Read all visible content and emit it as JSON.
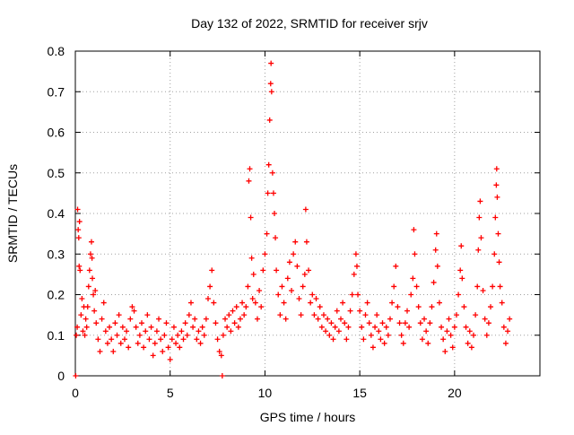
{
  "chart_data": {
    "type": "scatter",
    "title": "Day 132 of 2022, SRMTID for receiver srjv",
    "xlabel": "GPS time / hours",
    "ylabel": "SRMTID / TECUs",
    "xlim": [
      0,
      24.5
    ],
    "ylim": [
      0,
      0.8
    ],
    "xticks": [
      0,
      5,
      10,
      15,
      20
    ],
    "yticks": [
      0,
      0.1,
      0.2,
      0.3,
      0.4,
      0.5,
      0.6,
      0.7,
      0.8
    ],
    "grid": true,
    "marker": "+",
    "color": "#ff0000",
    "series": [
      {
        "name": "SRMTID",
        "points": [
          [
            0.02,
            0.0
          ],
          [
            0.05,
            0.1
          ],
          [
            0.1,
            0.12
          ],
          [
            0.12,
            0.41
          ],
          [
            0.15,
            0.36
          ],
          [
            0.18,
            0.34
          ],
          [
            0.2,
            0.27
          ],
          [
            0.22,
            0.38
          ],
          [
            0.25,
            0.26
          ],
          [
            0.3,
            0.15
          ],
          [
            0.35,
            0.19
          ],
          [
            0.4,
            0.11
          ],
          [
            0.45,
            0.17
          ],
          [
            0.5,
            0.1
          ],
          [
            0.55,
            0.14
          ],
          [
            0.6,
            0.12
          ],
          [
            0.65,
            0.17
          ],
          [
            0.7,
            0.22
          ],
          [
            0.75,
            0.26
          ],
          [
            0.8,
            0.3
          ],
          [
            0.85,
            0.33
          ],
          [
            0.88,
            0.29
          ],
          [
            0.9,
            0.24
          ],
          [
            0.95,
            0.2
          ],
          [
            1.0,
            0.16
          ],
          [
            1.05,
            0.21
          ],
          [
            1.1,
            0.13
          ],
          [
            1.2,
            0.09
          ],
          [
            1.3,
            0.06
          ],
          [
            1.4,
            0.14
          ],
          [
            1.5,
            0.18
          ],
          [
            1.6,
            0.11
          ],
          [
            1.7,
            0.08
          ],
          [
            1.8,
            0.12
          ],
          [
            1.9,
            0.09
          ],
          [
            2.0,
            0.06
          ],
          [
            2.1,
            0.13
          ],
          [
            2.2,
            0.1
          ],
          [
            2.3,
            0.15
          ],
          [
            2.4,
            0.08
          ],
          [
            2.5,
            0.12
          ],
          [
            2.6,
            0.09
          ],
          [
            2.7,
            0.11
          ],
          [
            2.8,
            0.07
          ],
          [
            2.9,
            0.14
          ],
          [
            3.0,
            0.17
          ],
          [
            3.1,
            0.16
          ],
          [
            3.2,
            0.12
          ],
          [
            3.3,
            0.08
          ],
          [
            3.4,
            0.1
          ],
          [
            3.5,
            0.13
          ],
          [
            3.6,
            0.07
          ],
          [
            3.7,
            0.11
          ],
          [
            3.8,
            0.15
          ],
          [
            3.9,
            0.09
          ],
          [
            4.0,
            0.12
          ],
          [
            4.1,
            0.05
          ],
          [
            4.2,
            0.08
          ],
          [
            4.3,
            0.11
          ],
          [
            4.4,
            0.14
          ],
          [
            4.5,
            0.09
          ],
          [
            4.6,
            0.06
          ],
          [
            4.7,
            0.1
          ],
          [
            4.8,
            0.13
          ],
          [
            4.9,
            0.07
          ],
          [
            5.0,
            0.04
          ],
          [
            5.1,
            0.09
          ],
          [
            5.2,
            0.12
          ],
          [
            5.3,
            0.08
          ],
          [
            5.4,
            0.1
          ],
          [
            5.5,
            0.07
          ],
          [
            5.6,
            0.11
          ],
          [
            5.7,
            0.09
          ],
          [
            5.8,
            0.13
          ],
          [
            5.9,
            0.1
          ],
          [
            6.0,
            0.15
          ],
          [
            6.1,
            0.18
          ],
          [
            6.2,
            0.12
          ],
          [
            6.3,
            0.14
          ],
          [
            6.4,
            0.09
          ],
          [
            6.5,
            0.11
          ],
          [
            6.6,
            0.08
          ],
          [
            6.7,
            0.12
          ],
          [
            6.8,
            0.1
          ],
          [
            6.9,
            0.14
          ],
          [
            7.0,
            0.19
          ],
          [
            7.1,
            0.22
          ],
          [
            7.2,
            0.26
          ],
          [
            7.3,
            0.18
          ],
          [
            7.4,
            0.13
          ],
          [
            7.5,
            0.09
          ],
          [
            7.6,
            0.06
          ],
          [
            7.7,
            0.05
          ],
          [
            7.75,
            0.0
          ],
          [
            7.8,
            0.1
          ],
          [
            7.9,
            0.14
          ],
          [
            8.0,
            0.12
          ],
          [
            8.1,
            0.15
          ],
          [
            8.2,
            0.11
          ],
          [
            8.3,
            0.16
          ],
          [
            8.4,
            0.13
          ],
          [
            8.5,
            0.17
          ],
          [
            8.6,
            0.12
          ],
          [
            8.7,
            0.14
          ],
          [
            8.8,
            0.18
          ],
          [
            8.9,
            0.15
          ],
          [
            9.0,
            0.17
          ],
          [
            9.1,
            0.22
          ],
          [
            9.15,
            0.48
          ],
          [
            9.2,
            0.51
          ],
          [
            9.25,
            0.39
          ],
          [
            9.3,
            0.29
          ],
          [
            9.35,
            0.19
          ],
          [
            9.4,
            0.25
          ],
          [
            9.5,
            0.18
          ],
          [
            9.6,
            0.14
          ],
          [
            9.7,
            0.21
          ],
          [
            9.8,
            0.17
          ],
          [
            9.9,
            0.26
          ],
          [
            10.0,
            0.3
          ],
          [
            10.1,
            0.35
          ],
          [
            10.15,
            0.45
          ],
          [
            10.2,
            0.52
          ],
          [
            10.25,
            0.63
          ],
          [
            10.3,
            0.72
          ],
          [
            10.32,
            0.77
          ],
          [
            10.35,
            0.7
          ],
          [
            10.4,
            0.5
          ],
          [
            10.45,
            0.45
          ],
          [
            10.5,
            0.4
          ],
          [
            10.55,
            0.34
          ],
          [
            10.6,
            0.26
          ],
          [
            10.7,
            0.2
          ],
          [
            10.8,
            0.15
          ],
          [
            10.9,
            0.22
          ],
          [
            11.0,
            0.18
          ],
          [
            11.1,
            0.14
          ],
          [
            11.2,
            0.24
          ],
          [
            11.3,
            0.28
          ],
          [
            11.4,
            0.21
          ],
          [
            11.5,
            0.3
          ],
          [
            11.6,
            0.33
          ],
          [
            11.7,
            0.27
          ],
          [
            11.8,
            0.19
          ],
          [
            11.9,
            0.15
          ],
          [
            12.0,
            0.22
          ],
          [
            12.1,
            0.25
          ],
          [
            12.15,
            0.41
          ],
          [
            12.2,
            0.33
          ],
          [
            12.3,
            0.26
          ],
          [
            12.4,
            0.18
          ],
          [
            12.5,
            0.2
          ],
          [
            12.6,
            0.15
          ],
          [
            12.7,
            0.19
          ],
          [
            12.8,
            0.14
          ],
          [
            12.9,
            0.17
          ],
          [
            13.0,
            0.12
          ],
          [
            13.1,
            0.15
          ],
          [
            13.2,
            0.11
          ],
          [
            13.3,
            0.14
          ],
          [
            13.4,
            0.1
          ],
          [
            13.5,
            0.13
          ],
          [
            13.6,
            0.09
          ],
          [
            13.7,
            0.12
          ],
          [
            13.8,
            0.16
          ],
          [
            13.9,
            0.11
          ],
          [
            14.0,
            0.14
          ],
          [
            14.1,
            0.18
          ],
          [
            14.2,
            0.13
          ],
          [
            14.3,
            0.09
          ],
          [
            14.4,
            0.12
          ],
          [
            14.5,
            0.16
          ],
          [
            14.6,
            0.2
          ],
          [
            14.7,
            0.25
          ],
          [
            14.8,
            0.3
          ],
          [
            14.85,
            0.27
          ],
          [
            14.9,
            0.2
          ],
          [
            15.0,
            0.16
          ],
          [
            15.1,
            0.12
          ],
          [
            15.2,
            0.09
          ],
          [
            15.3,
            0.15
          ],
          [
            15.4,
            0.18
          ],
          [
            15.5,
            0.13
          ],
          [
            15.6,
            0.1
          ],
          [
            15.7,
            0.07
          ],
          [
            15.8,
            0.12
          ],
          [
            15.9,
            0.15
          ],
          [
            16.0,
            0.11
          ],
          [
            16.1,
            0.09
          ],
          [
            16.2,
            0.13
          ],
          [
            16.3,
            0.08
          ],
          [
            16.4,
            0.12
          ],
          [
            16.5,
            0.1
          ],
          [
            16.6,
            0.14
          ],
          [
            16.7,
            0.18
          ],
          [
            16.8,
            0.22
          ],
          [
            16.9,
            0.27
          ],
          [
            17.0,
            0.17
          ],
          [
            17.1,
            0.13
          ],
          [
            17.2,
            0.1
          ],
          [
            17.3,
            0.08
          ],
          [
            17.4,
            0.13
          ],
          [
            17.5,
            0.16
          ],
          [
            17.6,
            0.12
          ],
          [
            17.7,
            0.2
          ],
          [
            17.8,
            0.24
          ],
          [
            17.85,
            0.36
          ],
          [
            17.9,
            0.3
          ],
          [
            18.0,
            0.22
          ],
          [
            18.1,
            0.17
          ],
          [
            18.2,
            0.13
          ],
          [
            18.3,
            0.09
          ],
          [
            18.4,
            0.14
          ],
          [
            18.5,
            0.11
          ],
          [
            18.6,
            0.08
          ],
          [
            18.7,
            0.13
          ],
          [
            18.8,
            0.17
          ],
          [
            18.9,
            0.23
          ],
          [
            19.0,
            0.31
          ],
          [
            19.05,
            0.35
          ],
          [
            19.1,
            0.27
          ],
          [
            19.2,
            0.18
          ],
          [
            19.3,
            0.12
          ],
          [
            19.4,
            0.09
          ],
          [
            19.5,
            0.06
          ],
          [
            19.6,
            0.11
          ],
          [
            19.7,
            0.14
          ],
          [
            19.8,
            0.1
          ],
          [
            19.9,
            0.07
          ],
          [
            20.0,
            0.12
          ],
          [
            20.1,
            0.15
          ],
          [
            20.2,
            0.2
          ],
          [
            20.3,
            0.26
          ],
          [
            20.35,
            0.32
          ],
          [
            20.4,
            0.24
          ],
          [
            20.5,
            0.17
          ],
          [
            20.6,
            0.12
          ],
          [
            20.7,
            0.08
          ],
          [
            20.8,
            0.11
          ],
          [
            20.9,
            0.07
          ],
          [
            21.0,
            0.1
          ],
          [
            21.1,
            0.15
          ],
          [
            21.2,
            0.22
          ],
          [
            21.25,
            0.31
          ],
          [
            21.3,
            0.39
          ],
          [
            21.35,
            0.43
          ],
          [
            21.4,
            0.34
          ],
          [
            21.5,
            0.21
          ],
          [
            21.6,
            0.14
          ],
          [
            21.7,
            0.1
          ],
          [
            21.8,
            0.13
          ],
          [
            21.9,
            0.17
          ],
          [
            22.0,
            0.22
          ],
          [
            22.1,
            0.3
          ],
          [
            22.15,
            0.39
          ],
          [
            22.2,
            0.47
          ],
          [
            22.22,
            0.51
          ],
          [
            22.25,
            0.44
          ],
          [
            22.3,
            0.35
          ],
          [
            22.35,
            0.28
          ],
          [
            22.4,
            0.22
          ],
          [
            22.5,
            0.18
          ],
          [
            22.6,
            0.12
          ],
          [
            22.7,
            0.08
          ],
          [
            22.8,
            0.11
          ],
          [
            22.9,
            0.14
          ]
        ]
      }
    ]
  }
}
